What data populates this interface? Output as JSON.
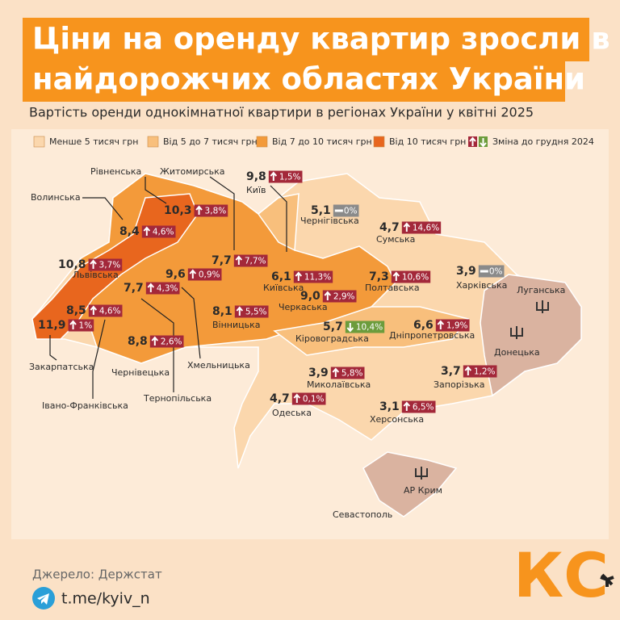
{
  "header": {
    "title": [
      "Ціни на оренду квартир зросли в",
      "найдорожчих областях України"
    ],
    "subtitle": "Вартість оренди однокімнатної квартири в регіонах України у квітні 2025"
  },
  "legend": {
    "items": [
      {
        "label": "Менше 5 тисяч грн",
        "color": "#fbd7ad"
      },
      {
        "label": "Від 5 до 7 тисяч грн",
        "color": "#f8bf7c"
      },
      {
        "label": "Від 7 до 10 тисяч грн",
        "color": "#f39a3a"
      },
      {
        "label": "Від 10 тисяч грн",
        "color": "#e8661e"
      }
    ],
    "change": {
      "label": "Зміна до грудня 2024",
      "up_color": "#a3283a",
      "down_color": "#6c9c3c"
    }
  },
  "regions": [
    {
      "name": "Волинська",
      "price": "8,4",
      "change": "4,6%",
      "color": "#a3283a"
    },
    {
      "name": "Рівненська",
      "price": "10,3",
      "change": "3,8%",
      "color": "#a3283a"
    },
    {
      "name": "Житомирська",
      "price": "7,7",
      "change": "7,7%",
      "color": "#a3283a"
    },
    {
      "name": "Київ",
      "price": "9,8",
      "change": "1,5%",
      "color": "#a3283a"
    },
    {
      "name": "Чернігівська",
      "price": "5,1",
      "change": "0%",
      "color": "#8a8a8a"
    },
    {
      "name": "Сумська",
      "price": "4,7",
      "change": "14,6%",
      "color": "#a3283a"
    },
    {
      "name": "Львівська",
      "price": "10,8",
      "change": "3,7%",
      "color": "#a3283a"
    },
    {
      "name": "Хмельницька",
      "price": "9,6",
      "change": "0,9%",
      "color": "#a3283a"
    },
    {
      "name": "Тернопільська",
      "price": "7,7",
      "change": "4,3%",
      "color": "#a3283a"
    },
    {
      "name": "Вінницька",
      "price": "8,1",
      "change": "5,5%",
      "color": "#a3283a"
    },
    {
      "name": "Київська",
      "price": "6,1",
      "change": "11,3%",
      "color": "#a3283a"
    },
    {
      "name": "Черкаська",
      "price": "9,0",
      "change": "2,9%",
      "color": "#a3283a"
    },
    {
      "name": "Полтавська",
      "price": "7,3",
      "change": "10,6%",
      "color": "#a3283a"
    },
    {
      "name": "Харківська",
      "price": "3,9",
      "change": "0%",
      "color": "#8a8a8a"
    },
    {
      "name": "Закарпатська",
      "price": "11,9",
      "change": "1%",
      "color": "#a3283a"
    },
    {
      "name": "Івано-Франківська",
      "price": "8,5",
      "change": "4,6%",
      "color": "#a3283a"
    },
    {
      "name": "Чернівецька",
      "price": "8,8",
      "change": "2,6%",
      "color": "#a3283a"
    },
    {
      "name": "Кіровоградська",
      "price": "5,7",
      "change": "10,4%",
      "color": "#6c9c3c"
    },
    {
      "name": "Дніпропетровська",
      "price": "6,6",
      "change": "1,9%",
      "color": "#a3283a"
    },
    {
      "name": "Миколаївська",
      "price": "3,9",
      "change": "5,8%",
      "color": "#a3283a"
    },
    {
      "name": "Запорізька",
      "price": "3,7",
      "change": "1,2%",
      "color": "#a3283a"
    },
    {
      "name": "Одеська",
      "price": "4,7",
      "change": "0,1%",
      "color": "#a3283a"
    },
    {
      "name": "Херсонська",
      "price": "3,1",
      "change": "6,5%",
      "color": "#a3283a"
    }
  ],
  "occupied": [
    "Луганська",
    "Донецька",
    "АР Крим",
    "Севастополь"
  ],
  "footer": {
    "source": "Джерело: Держстат",
    "channel": "t.me/kyiv_n",
    "logo": "КС"
  }
}
